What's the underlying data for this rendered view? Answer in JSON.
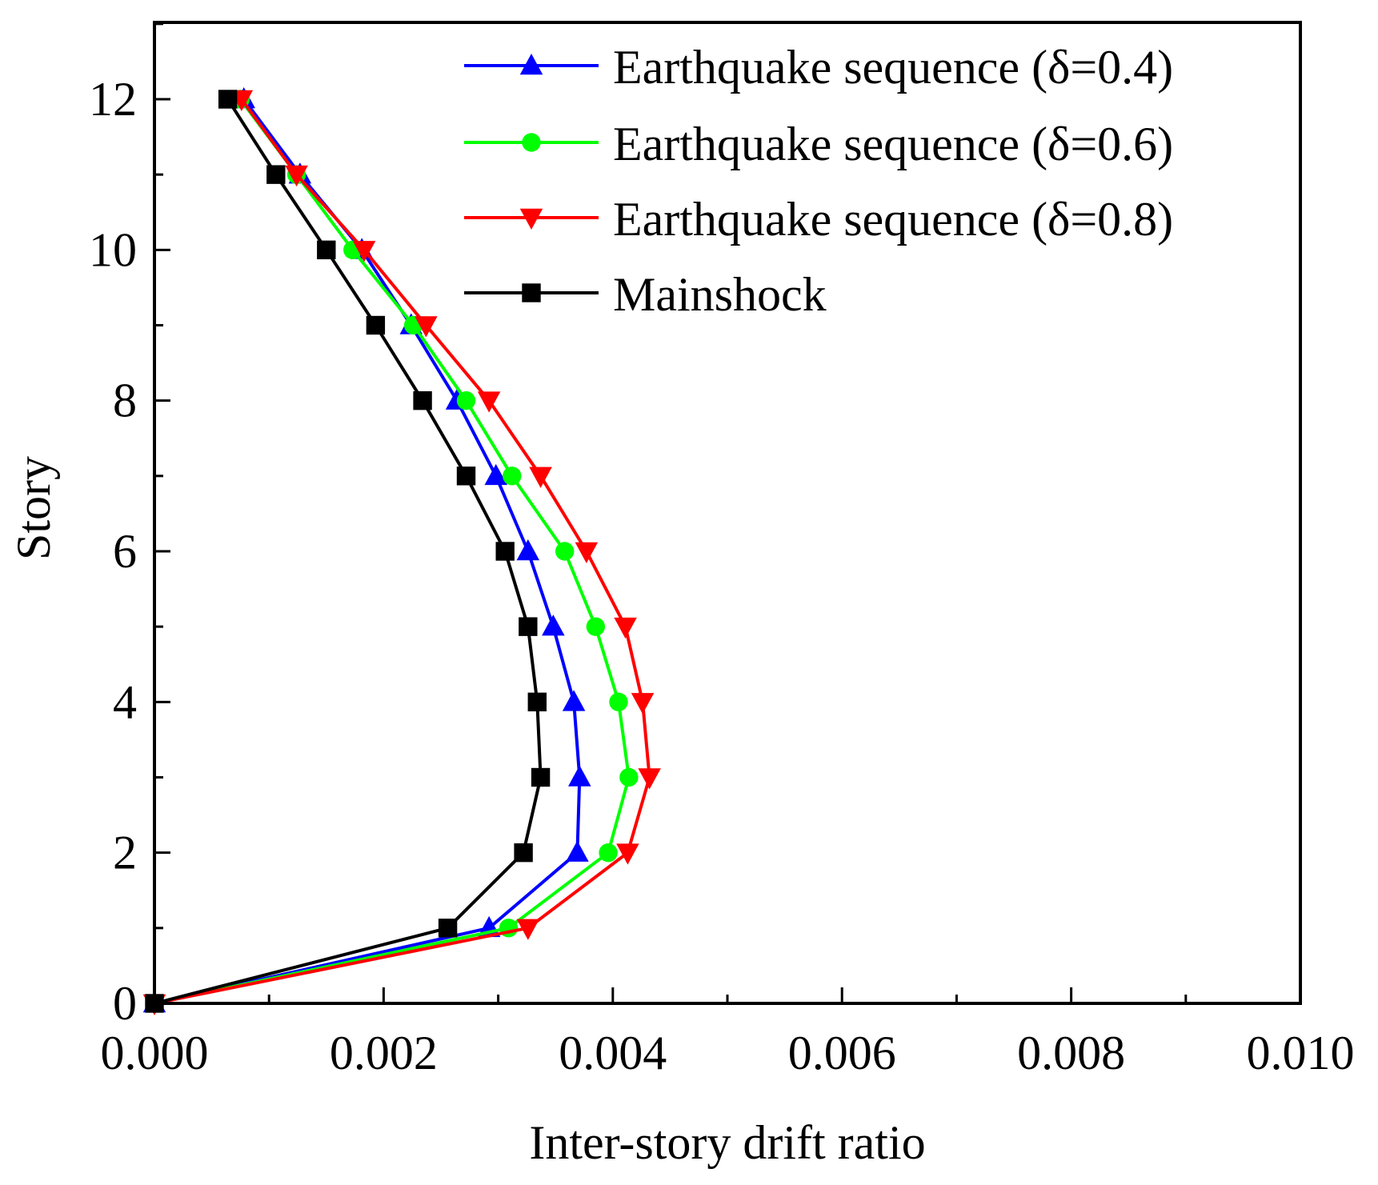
{
  "chart_data": {
    "type": "line",
    "title": "",
    "xlabel": "Inter-story drift ratio",
    "ylabel": "Story",
    "xlim": [
      0.0,
      0.01
    ],
    "ylim": [
      0,
      13
    ],
    "x_ticks": [
      0.0,
      0.002,
      0.004,
      0.006,
      0.008,
      0.01
    ],
    "x_tick_labels": [
      "0.000",
      "0.002",
      "0.004",
      "0.006",
      "0.008",
      "0.010"
    ],
    "y_ticks": [
      0,
      2,
      4,
      6,
      8,
      10,
      12
    ],
    "y_tick_labels": [
      "0",
      "2",
      "4",
      "6",
      "8",
      "10",
      "12"
    ],
    "grid": false,
    "legend_position": "top-right",
    "series": [
      {
        "name": "Earthquake sequence (δ=0.4)",
        "color": "#0000ff",
        "marker": "triangle-up",
        "x": [
          0.0,
          0.00292,
          0.00369,
          0.00371,
          0.00366,
          0.00348,
          0.00326,
          0.00298,
          0.00264,
          0.00224,
          0.00181,
          0.00127,
          0.00078
        ],
        "y": [
          0,
          1,
          2,
          3,
          4,
          5,
          6,
          7,
          8,
          9,
          10,
          11,
          12
        ]
      },
      {
        "name": "Earthquake sequence (δ=0.6)",
        "color": "#00ff00",
        "marker": "circle",
        "x": [
          0.0,
          0.00309,
          0.00396,
          0.00414,
          0.00405,
          0.00385,
          0.00358,
          0.00312,
          0.00272,
          0.00226,
          0.00173,
          0.00124,
          0.00075
        ],
        "y": [
          0,
          1,
          2,
          3,
          4,
          5,
          6,
          7,
          8,
          9,
          10,
          11,
          12
        ]
      },
      {
        "name": "Earthquake sequence (δ=0.8)",
        "color": "#ff0000",
        "marker": "triangle-down",
        "x": [
          0.0,
          0.00326,
          0.00413,
          0.00432,
          0.00426,
          0.00411,
          0.00377,
          0.00337,
          0.00292,
          0.00237,
          0.00183,
          0.00124,
          0.00076
        ],
        "y": [
          0,
          1,
          2,
          3,
          4,
          5,
          6,
          7,
          8,
          9,
          10,
          11,
          12
        ]
      },
      {
        "name": "Mainshock",
        "color": "#000000",
        "marker": "square",
        "x": [
          0.0,
          0.00256,
          0.00322,
          0.00337,
          0.00334,
          0.00326,
          0.00306,
          0.00272,
          0.00234,
          0.00193,
          0.0015,
          0.00106,
          0.00064
        ],
        "y": [
          0,
          1,
          2,
          3,
          4,
          5,
          6,
          7,
          8,
          9,
          10,
          11,
          12
        ]
      }
    ]
  }
}
